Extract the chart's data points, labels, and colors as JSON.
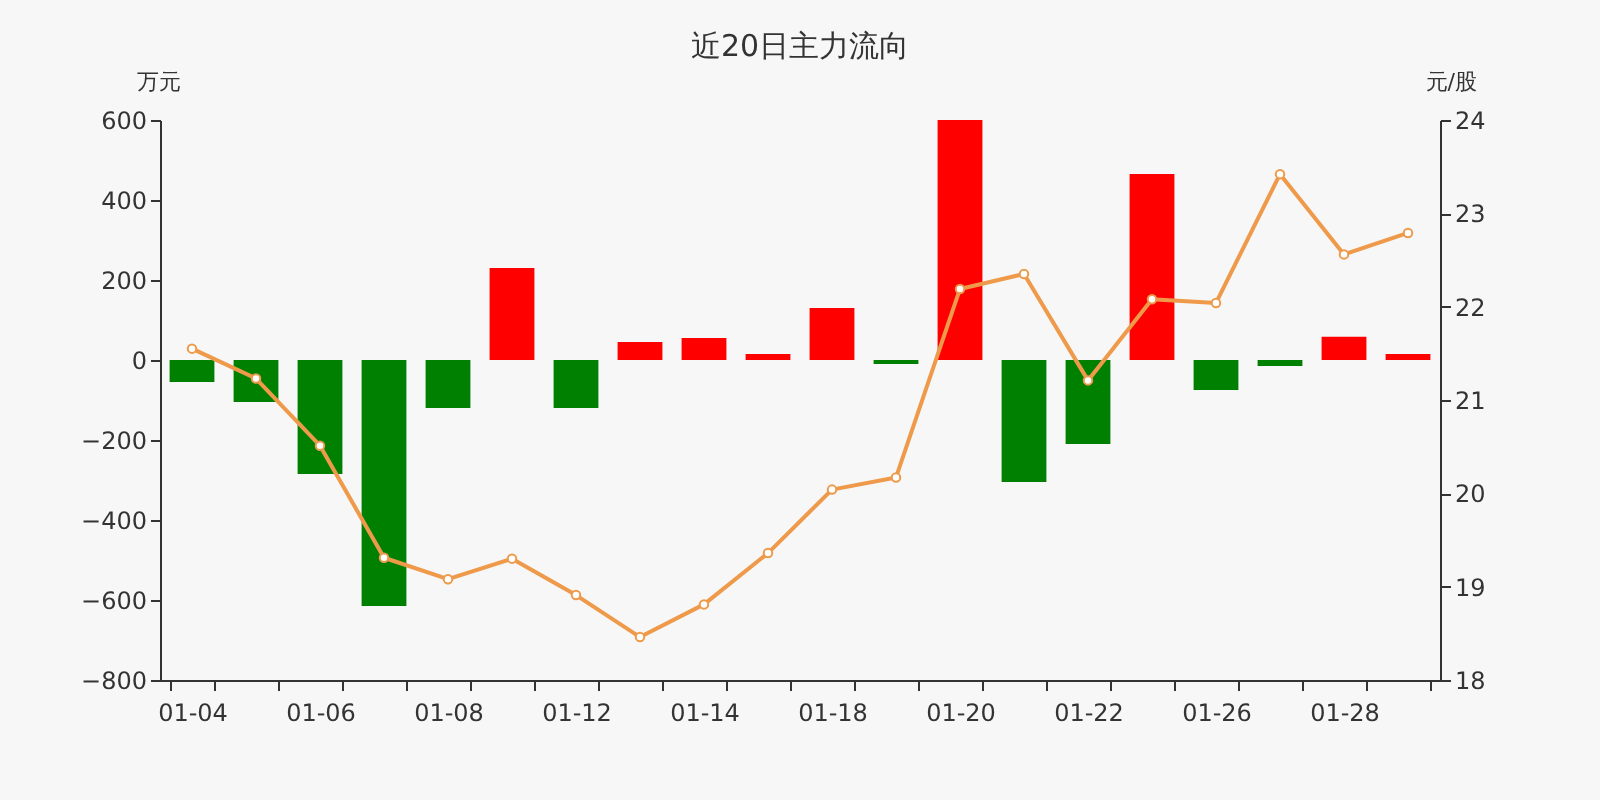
{
  "chart_data": {
    "type": "bar",
    "title": "近20日主力流向",
    "ylabel": "万元",
    "y2label": "元/股",
    "categories": [
      "01-04",
      null,
      "01-06",
      null,
      "01-08",
      null,
      "01-12",
      null,
      "01-14",
      null,
      "01-18",
      null,
      "01-20",
      null,
      "01-22",
      null,
      "01-26",
      null,
      "01-28",
      null
    ],
    "series": [
      {
        "colors": [
          "#008000",
          "#008000",
          "#008000",
          "#008000",
          "#008000",
          "#ff0000",
          "#008000",
          "#ff0000",
          "#ff0000",
          "#ff0000",
          "#ff0000",
          "#008000",
          "#ff0000",
          "#008000",
          "#008000",
          "#ff0000",
          "#008000",
          "#008000",
          "#ff0000",
          "#ff0000"
        ],
        "values": [
          -55,
          -105,
          -285,
          -615,
          -120,
          230,
          -120,
          45,
          55,
          15,
          130,
          -10,
          600,
          -305,
          -210,
          465,
          -75,
          -15,
          58,
          15
        ]
      },
      {
        "type": "line",
        "axis": "y2",
        "color": "#ee9a4a",
        "marker": "circle",
        "values": [
          21.55,
          21.23,
          20.51,
          19.31,
          19.08,
          19.3,
          18.91,
          18.46,
          18.81,
          19.36,
          20.04,
          20.17,
          22.19,
          22.35,
          21.21,
          22.08,
          22.04,
          23.42,
          22.56,
          22.79
        ]
      }
    ],
    "ylim": [
      -800,
      600
    ],
    "yticks": [
      -800,
      -600,
      -400,
      -200,
      0,
      200,
      400,
      600
    ],
    "y2lim": [
      18,
      24
    ],
    "y2ticks": [
      18,
      19,
      20,
      21,
      22,
      23,
      24
    ]
  }
}
